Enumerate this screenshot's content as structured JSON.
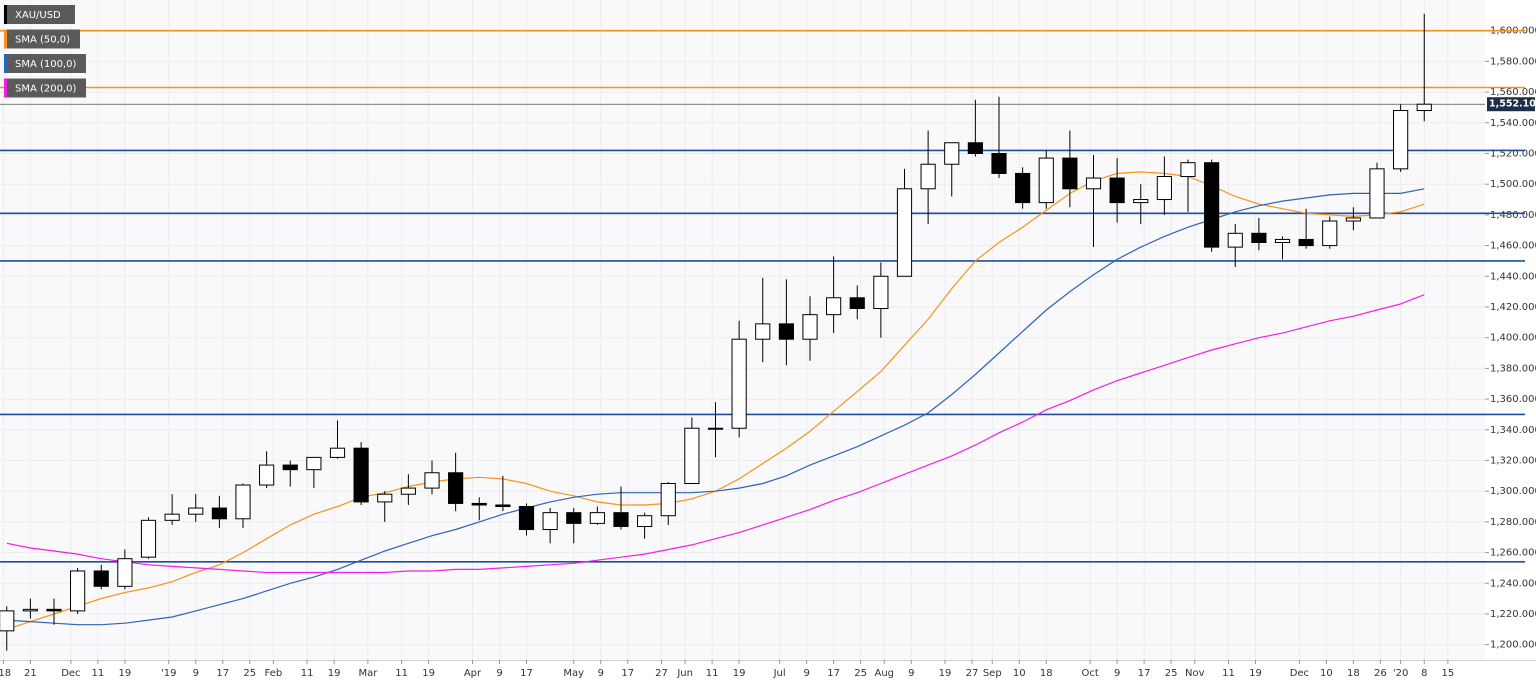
{
  "chart_data": {
    "type": "candlestick",
    "xlim": [
      "2018-11-12",
      "2020-01-26"
    ],
    "ylim": [
      1190,
      1620
    ],
    "grid": true,
    "x": [
      "2018-11-14",
      "2018-11-21",
      "2018-11-28",
      "2018-12-05",
      "2018-12-12",
      "2018-12-19",
      "2018-12-26",
      "2019-01-02",
      "2019-01-09",
      "2019-01-16",
      "2019-01-23",
      "2019-01-30",
      "2019-02-06",
      "2019-02-13",
      "2019-02-20",
      "2019-02-27",
      "2019-03-06",
      "2019-03-13",
      "2019-03-20",
      "2019-03-27",
      "2019-04-03",
      "2019-04-10",
      "2019-04-17",
      "2019-04-24",
      "2019-05-01",
      "2019-05-08",
      "2019-05-15",
      "2019-05-22",
      "2019-05-29",
      "2019-06-05",
      "2019-06-12",
      "2019-06-19",
      "2019-06-26",
      "2019-07-03",
      "2019-07-10",
      "2019-07-17",
      "2019-07-24",
      "2019-07-31",
      "2019-08-07",
      "2019-08-14",
      "2019-08-21",
      "2019-08-28",
      "2019-09-04",
      "2019-09-11",
      "2019-09-18",
      "2019-09-25",
      "2019-10-02",
      "2019-10-09",
      "2019-10-16",
      "2019-10-23",
      "2019-10-30",
      "2019-11-06",
      "2019-11-13",
      "2019-11-20",
      "2019-11-27",
      "2019-12-04",
      "2019-12-11",
      "2019-12-18",
      "2019-12-25",
      "2020-01-01",
      "2020-01-08"
    ],
    "candles": {
      "name": "XAU/USD",
      "color": "#000000",
      "up_color": "#ffffff",
      "down_color": "#000000",
      "open": [
        1209,
        1222,
        1223,
        1222,
        1248,
        1238,
        1257,
        1281,
        1285,
        1289,
        1282,
        1304,
        1317,
        1314,
        1322,
        1328,
        1293,
        1298,
        1302,
        1312,
        1292,
        1291,
        1290,
        1275,
        1286,
        1279,
        1286,
        1277,
        1284,
        1305,
        1341,
        1341,
        1399,
        1409,
        1399,
        1415,
        1426,
        1419,
        1440,
        1497,
        1513,
        1527,
        1520,
        1507,
        1488,
        1517,
        1497,
        1504,
        1488,
        1490,
        1505,
        1514,
        1459,
        1468,
        1462,
        1464,
        1460,
        1476,
        1478,
        1510,
        1548
      ],
      "high": [
        1225,
        1230,
        1230,
        1250,
        1252,
        1262,
        1283,
        1298,
        1298,
        1297,
        1305,
        1326,
        1320,
        1322,
        1346,
        1332,
        1300,
        1311,
        1320,
        1325,
        1296,
        1310,
        1292,
        1289,
        1289,
        1290,
        1303,
        1286,
        1306,
        1348,
        1358,
        1411,
        1439,
        1438,
        1427,
        1453,
        1434,
        1449,
        1510,
        1535,
        1527,
        1555,
        1557,
        1511,
        1522,
        1535,
        1519,
        1517,
        1500,
        1518,
        1516,
        1516,
        1474,
        1478,
        1466,
        1484,
        1479,
        1485,
        1514,
        1552,
        1611
      ],
      "low": [
        1196,
        1217,
        1213,
        1220,
        1236,
        1236,
        1256,
        1278,
        1280,
        1276,
        1276,
        1302,
        1303,
        1302,
        1321,
        1291,
        1280,
        1291,
        1298,
        1287,
        1281,
        1287,
        1271,
        1266,
        1266,
        1278,
        1275,
        1269,
        1278,
        1305,
        1322,
        1335,
        1384,
        1382,
        1385,
        1403,
        1412,
        1400,
        1440,
        1474,
        1492,
        1518,
        1504,
        1484,
        1484,
        1485,
        1459,
        1475,
        1474,
        1480,
        1482,
        1456,
        1446,
        1457,
        1451,
        1458,
        1458,
        1470,
        1478,
        1508,
        1541
      ],
      "close": [
        1222,
        1223,
        1222,
        1248,
        1238,
        1256,
        1281,
        1285,
        1289,
        1282,
        1304,
        1317,
        1314,
        1322,
        1328,
        1293,
        1298,
        1302,
        1312,
        1292,
        1291,
        1290,
        1275,
        1286,
        1279,
        1286,
        1277,
        1284,
        1305,
        1341,
        1341,
        1399,
        1409,
        1399,
        1415,
        1426,
        1419,
        1440,
        1497,
        1513,
        1527,
        1520,
        1507,
        1488,
        1517,
        1497,
        1504,
        1488,
        1490,
        1505,
        1514,
        1459,
        1468,
        1462,
        1464,
        1460,
        1476,
        1478,
        1510,
        1548,
        1552.1
      ]
    },
    "series": [
      {
        "name": "SMA (50,0)",
        "color": "#f7931a",
        "values": [
          1210,
          1215,
          1220,
          1225,
          1230,
          1234,
          1237,
          1241,
          1247,
          1252,
          1260,
          1269,
          1278,
          1285,
          1290,
          1296,
          1299,
          1303,
          1306,
          1308,
          1309,
          1308,
          1305,
          1300,
          1297,
          1293,
          1291,
          1291,
          1292,
          1295,
          1300,
          1308,
          1318,
          1328,
          1339,
          1352,
          1365,
          1378,
          1395,
          1412,
          1432,
          1450,
          1462,
          1472,
          1483,
          1494,
          1502,
          1507,
          1508,
          1507,
          1505,
          1499,
          1492,
          1487,
          1484,
          1481,
          1480,
          1479,
          1480,
          1482,
          1487
        ]
      },
      {
        "name": "SMA (100,0)",
        "color": "#2e64b4",
        "values": [
          1216,
          1215,
          1214,
          1213,
          1213,
          1214,
          1216,
          1218,
          1222,
          1226,
          1230,
          1235,
          1240,
          1244,
          1249,
          1255,
          1261,
          1266,
          1271,
          1275,
          1280,
          1285,
          1289,
          1293,
          1296,
          1298,
          1299,
          1299,
          1299,
          1299,
          1300,
          1302,
          1305,
          1310,
          1317,
          1323,
          1329,
          1336,
          1343,
          1351,
          1363,
          1376,
          1390,
          1404,
          1418,
          1430,
          1441,
          1451,
          1459,
          1466,
          1472,
          1477,
          1482,
          1486,
          1489,
          1491,
          1493,
          1494,
          1494,
          1494,
          1497
        ]
      },
      {
        "name": "SMA (200,0)",
        "color": "#f020e8",
        "values": [
          1266,
          1263,
          1261,
          1259,
          1256,
          1254,
          1252,
          1251,
          1250,
          1249,
          1248,
          1247,
          1247,
          1247,
          1247,
          1247,
          1247,
          1248,
          1248,
          1249,
          1249,
          1250,
          1251,
          1252,
          1253,
          1255,
          1257,
          1259,
          1262,
          1265,
          1269,
          1273,
          1278,
          1283,
          1288,
          1294,
          1299,
          1305,
          1311,
          1317,
          1323,
          1330,
          1338,
          1345,
          1353,
          1359,
          1366,
          1372,
          1377,
          1382,
          1387,
          1392,
          1396,
          1400,
          1403,
          1407,
          1411,
          1414,
          1418,
          1422,
          1428
        ]
      }
    ],
    "levels": [
      {
        "value": 1600,
        "color": "#f7931a"
      },
      {
        "value": 1563,
        "color": "#f7931a"
      },
      {
        "value": 1522,
        "color": "#1f4e99"
      },
      {
        "value": 1481,
        "color": "#1f4e99"
      },
      {
        "value": 1450,
        "color": "#1f4e99"
      },
      {
        "value": 1350,
        "color": "#1f4e99"
      },
      {
        "value": 1254,
        "color": "#1f4e99"
      }
    ],
    "last_price": {
      "value": 1552.1,
      "label": "1,552.10000",
      "color": "#1e2d4a"
    },
    "yticks": [
      {
        "value": 1200,
        "label": "1,200.0000"
      },
      {
        "value": 1220,
        "label": "1,220.0000"
      },
      {
        "value": 1240,
        "label": "1,240.0000"
      },
      {
        "value": 1260,
        "label": "1,260.0000"
      },
      {
        "value": 1280,
        "label": "1,280.0000"
      },
      {
        "value": 1300,
        "label": "1,300.0000"
      },
      {
        "value": 1320,
        "label": "1,320.0000"
      },
      {
        "value": 1340,
        "label": "1,340.0000"
      },
      {
        "value": 1360,
        "label": "1,360.0000"
      },
      {
        "value": 1380,
        "label": "1,380.0000"
      },
      {
        "value": 1400,
        "label": "1,400.0000"
      },
      {
        "value": 1420,
        "label": "1,420.0000"
      },
      {
        "value": 1440,
        "label": "1,440.0000"
      },
      {
        "value": 1460,
        "label": "1,460.0000"
      },
      {
        "value": 1480,
        "label": "1,480.0000"
      },
      {
        "value": 1500,
        "label": "1,500.0000"
      },
      {
        "value": 1520,
        "label": "1,520.0000"
      },
      {
        "value": 1540,
        "label": "1,540.0000"
      },
      {
        "value": 1560,
        "label": "1,560.0000"
      },
      {
        "value": 1580,
        "label": "1,580.0000"
      },
      {
        "value": 1600,
        "label": "1,600.0000"
      }
    ],
    "xticks": [
      {
        "value": "2018-11-13",
        "label": "'18"
      },
      {
        "value": "2018-11-21",
        "label": "21"
      },
      {
        "value": "2018-12-03",
        "label": "Dec"
      },
      {
        "value": "2018-12-11",
        "label": "11"
      },
      {
        "value": "2018-12-19",
        "label": "19"
      },
      {
        "value": "2019-01-01",
        "label": "'19"
      },
      {
        "value": "2019-01-09",
        "label": "9"
      },
      {
        "value": "2019-01-17",
        "label": "17"
      },
      {
        "value": "2019-01-25",
        "label": "25"
      },
      {
        "value": "2019-02-01",
        "label": "Feb"
      },
      {
        "value": "2019-02-11",
        "label": "11"
      },
      {
        "value": "2019-02-19",
        "label": "19"
      },
      {
        "value": "2019-03-01",
        "label": "Mar"
      },
      {
        "value": "2019-03-11",
        "label": "11"
      },
      {
        "value": "2019-03-19",
        "label": "19"
      },
      {
        "value": "2019-04-01",
        "label": "Apr"
      },
      {
        "value": "2019-04-09",
        "label": "9"
      },
      {
        "value": "2019-04-17",
        "label": "17"
      },
      {
        "value": "2019-05-01",
        "label": "May"
      },
      {
        "value": "2019-05-09",
        "label": "9"
      },
      {
        "value": "2019-05-17",
        "label": "17"
      },
      {
        "value": "2019-05-27",
        "label": "27"
      },
      {
        "value": "2019-06-03",
        "label": "Jun"
      },
      {
        "value": "2019-06-11",
        "label": "11"
      },
      {
        "value": "2019-06-19",
        "label": "19"
      },
      {
        "value": "2019-07-01",
        "label": "Jul"
      },
      {
        "value": "2019-07-09",
        "label": "9"
      },
      {
        "value": "2019-07-17",
        "label": "17"
      },
      {
        "value": "2019-07-25",
        "label": "25"
      },
      {
        "value": "2019-08-01",
        "label": "Aug"
      },
      {
        "value": "2019-08-09",
        "label": "9"
      },
      {
        "value": "2019-08-19",
        "label": "19"
      },
      {
        "value": "2019-08-27",
        "label": "27"
      },
      {
        "value": "2019-09-02",
        "label": "Sep"
      },
      {
        "value": "2019-09-10",
        "label": "10"
      },
      {
        "value": "2019-09-18",
        "label": "18"
      },
      {
        "value": "2019-10-01",
        "label": "Oct"
      },
      {
        "value": "2019-10-09",
        "label": "9"
      },
      {
        "value": "2019-10-17",
        "label": "17"
      },
      {
        "value": "2019-10-25",
        "label": "25"
      },
      {
        "value": "2019-11-01",
        "label": "Nov"
      },
      {
        "value": "2019-11-11",
        "label": "11"
      },
      {
        "value": "2019-11-19",
        "label": "19"
      },
      {
        "value": "2019-12-02",
        "label": "Dec"
      },
      {
        "value": "2019-12-10",
        "label": "10"
      },
      {
        "value": "2019-12-18",
        "label": "18"
      },
      {
        "value": "2019-12-26",
        "label": "26"
      },
      {
        "value": "2020-01-01",
        "label": "'20"
      },
      {
        "value": "2020-01-08",
        "label": "8"
      },
      {
        "value": "2020-01-15",
        "label": "15"
      }
    ]
  }
}
